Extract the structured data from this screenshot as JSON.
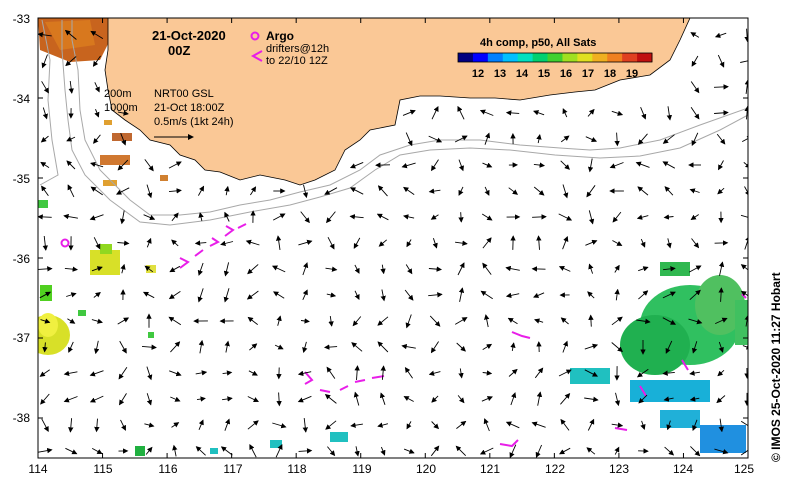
{
  "title": {
    "date": "21-Oct-2020",
    "time": "00Z"
  },
  "legend_argo": {
    "argo_label": "Argo",
    "drifters_line1": "drifters@12h",
    "drifters_line2": "to 22/10 12Z",
    "argo_color": "#e81ee8",
    "drifter_color": "#e81ee8"
  },
  "isobaths": {
    "shallow": "200m",
    "deep": "1000m"
  },
  "current_info": {
    "line1": "NRT00 GSL",
    "line2": "21-Oct 18:00Z",
    "line3": "0.5m/s (1kt 24h)"
  },
  "colorbar": {
    "title": "4h comp, p50, All Sats",
    "ticks": [
      "12",
      "13",
      "14",
      "15",
      "16",
      "17",
      "18",
      "19"
    ],
    "colors": [
      "#000080",
      "#0000ff",
      "#0080ff",
      "#00c0ff",
      "#00e0c0",
      "#00d070",
      "#40d030",
      "#a0e020",
      "#e0e020",
      "#f0b020",
      "#f08020",
      "#e04020",
      "#c01010"
    ]
  },
  "axes": {
    "x_ticks": [
      "114",
      "115",
      "116",
      "117",
      "118",
      "119",
      "120",
      "121",
      "122",
      "123",
      "124",
      "125"
    ],
    "y_ticks": [
      "-33",
      "-34",
      "-35",
      "-36",
      "-37",
      "-38"
    ]
  },
  "credit": "© IMOS 25-Oct-2020 11:27 Hobart",
  "colors": {
    "land": "#fac896",
    "isobath": "#a8a8a8"
  }
}
